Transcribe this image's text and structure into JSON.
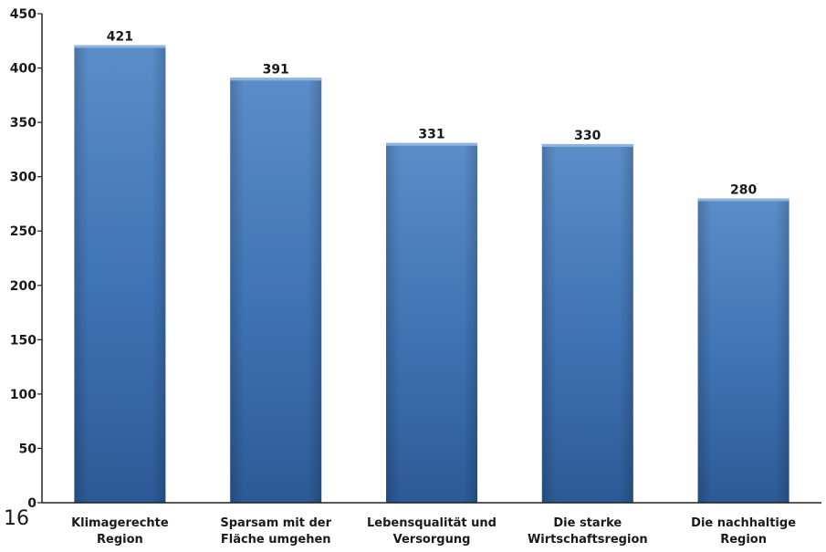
{
  "page_number": "16",
  "colors": {
    "bar_light": "#5b8dc9",
    "bar_dark": "#2c5a96",
    "bar_mid": "#3f72b3",
    "axis": "#222222"
  },
  "chart_data": {
    "type": "bar",
    "categories": [
      [
        "Klimagerechte",
        "Region"
      ],
      [
        "Sparsam mit der",
        "Fläche umgehen"
      ],
      [
        "Lebensqualität und",
        "Versorgung"
      ],
      [
        "Die starke",
        "Wirtschaftsregion"
      ],
      [
        "Die nachhaltige",
        "Region"
      ]
    ],
    "values": [
      421,
      391,
      331,
      330,
      280
    ],
    "title": "",
    "xlabel": "",
    "ylabel": "",
    "ylim": [
      0,
      450
    ],
    "yticks": [
      0,
      50,
      100,
      150,
      200,
      250,
      300,
      350,
      400,
      450
    ],
    "grid": false,
    "legend": "none"
  }
}
